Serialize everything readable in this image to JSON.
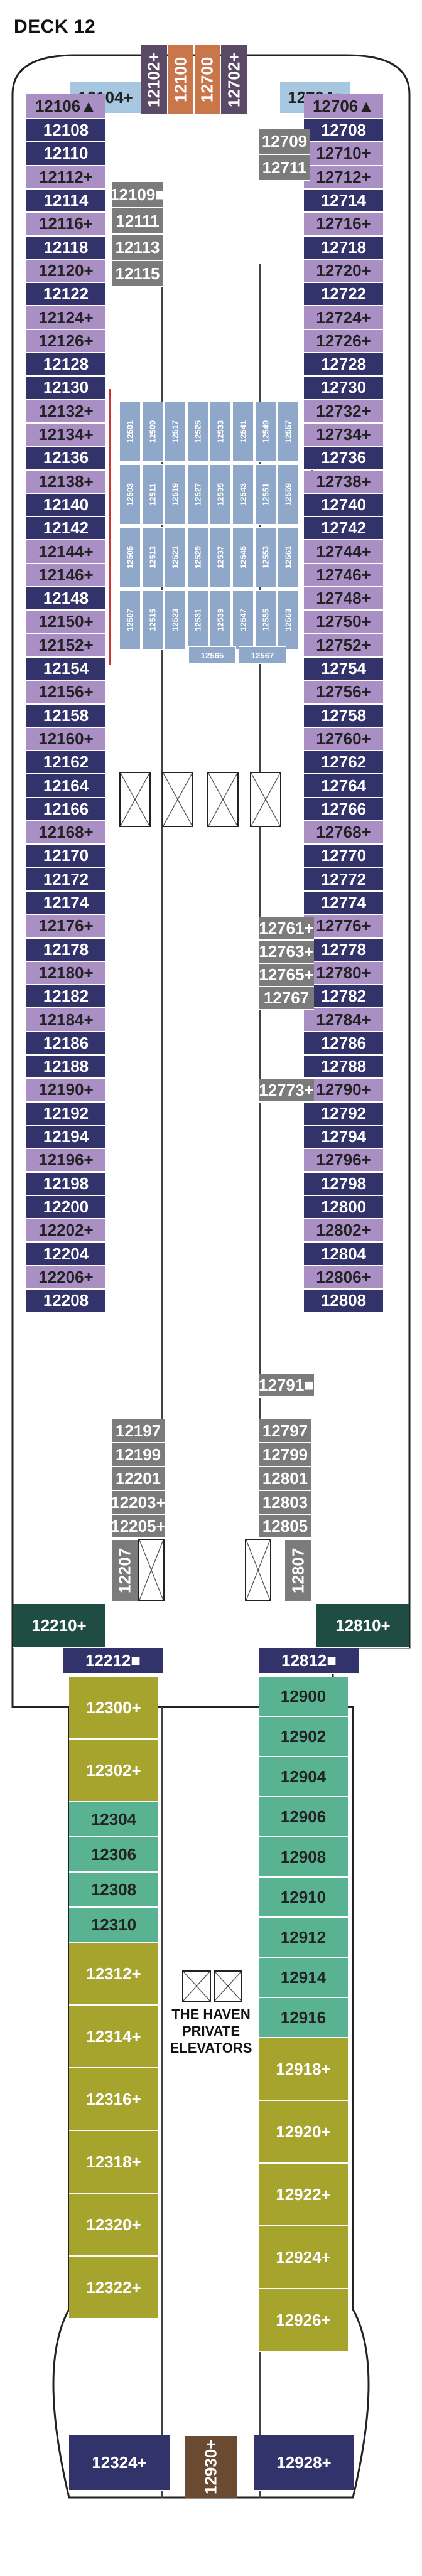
{
  "title": "DECK 12",
  "haven": "THE HAVEN PRIVATE ELEVATORS",
  "colors": {
    "navy": "#33336b",
    "purple": "#a98fc4",
    "light_blue": "#a7c7e0",
    "dark_gray_purple": "#5b4a66",
    "orange": "#c9774a",
    "gray": "#7b7b7b",
    "dark_green": "#1f4d44",
    "olive": "#a7a42e",
    "teal": "#59b392",
    "interior_blue": "#8fa7c9",
    "brown": "#6a4a30"
  },
  "left_column": [
    "12108",
    "12110",
    "12112+",
    "12114",
    "12116+",
    "12118",
    "12120+",
    "12122",
    "12124+",
    "12126+",
    "12128",
    "12130",
    "12132+",
    "12134+",
    "12136",
    "12138+",
    "12140",
    "12142",
    "12144+",
    "12146+",
    "12148",
    "12150+",
    "12152+",
    "12154",
    "12156+",
    "12158",
    "12160+",
    "12162",
    "12164",
    "12166",
    "12168+",
    "12170",
    "12172",
    "12174",
    "12176+",
    "12178",
    "12180+",
    "12182",
    "12184+",
    "12186",
    "12188",
    "12190+",
    "12192",
    "12194",
    "12196+",
    "12198",
    "12200",
    "12202+",
    "12204",
    "12206+",
    "12208"
  ],
  "right_column": [
    "12708",
    "12710+",
    "12712+",
    "12714",
    "12716+",
    "12718",
    "12720+",
    "12722",
    "12724+",
    "12726+",
    "12728",
    "12730",
    "12732+",
    "12734+",
    "12736",
    "12738+",
    "12740",
    "12742",
    "12744+",
    "12746+",
    "12748+",
    "12750+",
    "12752+",
    "12754",
    "12756+",
    "12758",
    "12760+",
    "12762",
    "12764",
    "12766",
    "12768+",
    "12770",
    "12772",
    "12774",
    "12776+",
    "12778",
    "12780+",
    "12782",
    "12784+",
    "12786",
    "12788",
    "12790+",
    "12792",
    "12794",
    "12796+",
    "12798",
    "12800",
    "12802+",
    "12804",
    "12806+",
    "12808"
  ],
  "top": {
    "left_corner": "12104+",
    "v1": "12102+",
    "v2": "12100",
    "v3": "12700",
    "v4": "12702+",
    "right_corner": "12704+",
    "left_end": "12106▲",
    "right_end": "12706▲"
  },
  "inner_left": [
    "12109■",
    "12111",
    "12113",
    "12115"
  ],
  "inner_right": [
    "12709",
    "12711"
  ],
  "mid_right": [
    "12761+",
    "12763+",
    "12765+",
    "12767",
    "12773+",
    "12791■"
  ],
  "lower_left": [
    "12197",
    "12199",
    "12201",
    "12203+",
    "12205+",
    "12207"
  ],
  "lower_right": [
    "12797",
    "12799",
    "12801",
    "12803",
    "12805",
    "12807"
  ],
  "interior_cabins": [
    "12501",
    "12503",
    "12505",
    "12507",
    "12509",
    "12511",
    "12513",
    "12515",
    "12517",
    "12519",
    "12521",
    "12523",
    "12525",
    "12527",
    "12529",
    "12531",
    "12533",
    "12535",
    "12537",
    "12539",
    "12541",
    "12543",
    "12545",
    "12547",
    "12549",
    "12551",
    "12553",
    "12555",
    "12557",
    "12559",
    "12561",
    "12563",
    "12565",
    "12567"
  ],
  "aft_corners": {
    "left": "12210+",
    "right": "12810+",
    "inner_left": "12212■",
    "inner_right": "12812■"
  },
  "haven_left": [
    "12300+",
    "12302+",
    "12304",
    "12306",
    "12308",
    "12310",
    "12312+",
    "12314+",
    "12316+",
    "12318+",
    "12320+",
    "12322+",
    "12324+"
  ],
  "haven_right": [
    "12900",
    "12902",
    "12904",
    "12906",
    "12908",
    "12910",
    "12912",
    "12914",
    "12916",
    "12918+",
    "12920+",
    "12922+",
    "12924+",
    "12926+",
    "12928+"
  ],
  "haven_center": "12930+"
}
